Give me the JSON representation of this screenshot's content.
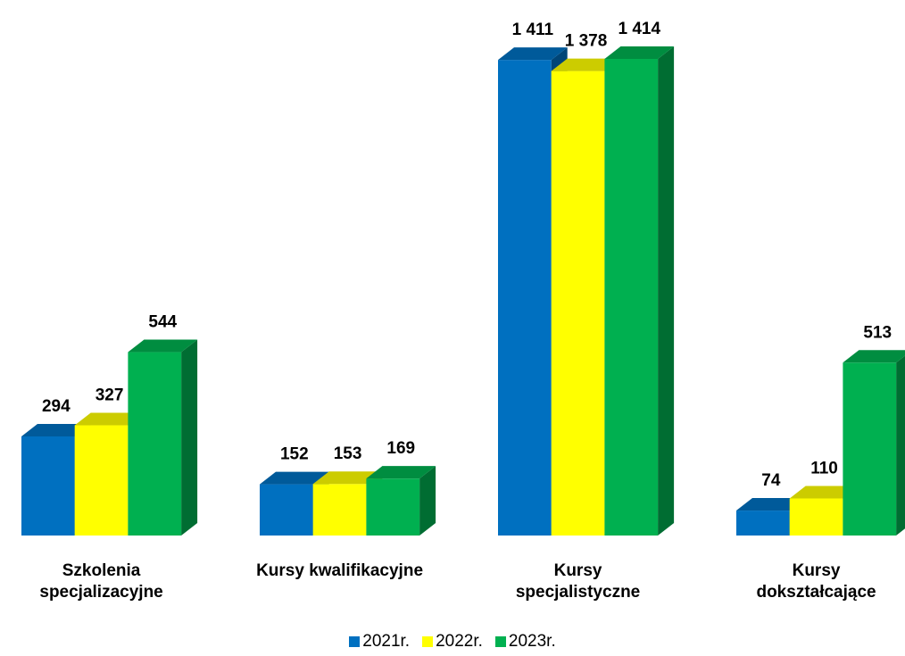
{
  "chart_data": {
    "type": "bar3d",
    "categories": [
      "Szkolenia\nspecjalizacyjne",
      "Kursy kwalifikacyjne",
      "Kursy\nspecjalistyczne",
      "Kursy\ndokształcające"
    ],
    "series": [
      {
        "name": "2021r.",
        "color": "#0070c0",
        "values": [
          294,
          152,
          1411,
          74
        ],
        "value_labels": [
          "294",
          "152",
          "1 411",
          "74"
        ]
      },
      {
        "name": "2022r.",
        "color": "#ffff00",
        "values": [
          327,
          153,
          1378,
          110
        ],
        "value_labels": [
          "327",
          "153",
          "1 378",
          "110"
        ]
      },
      {
        "name": "2023r.",
        "color": "#00b050",
        "values": [
          544,
          169,
          1414,
          513
        ],
        "value_labels": [
          "544",
          "169",
          "1 414",
          "513"
        ]
      }
    ],
    "legend": "bottom"
  }
}
